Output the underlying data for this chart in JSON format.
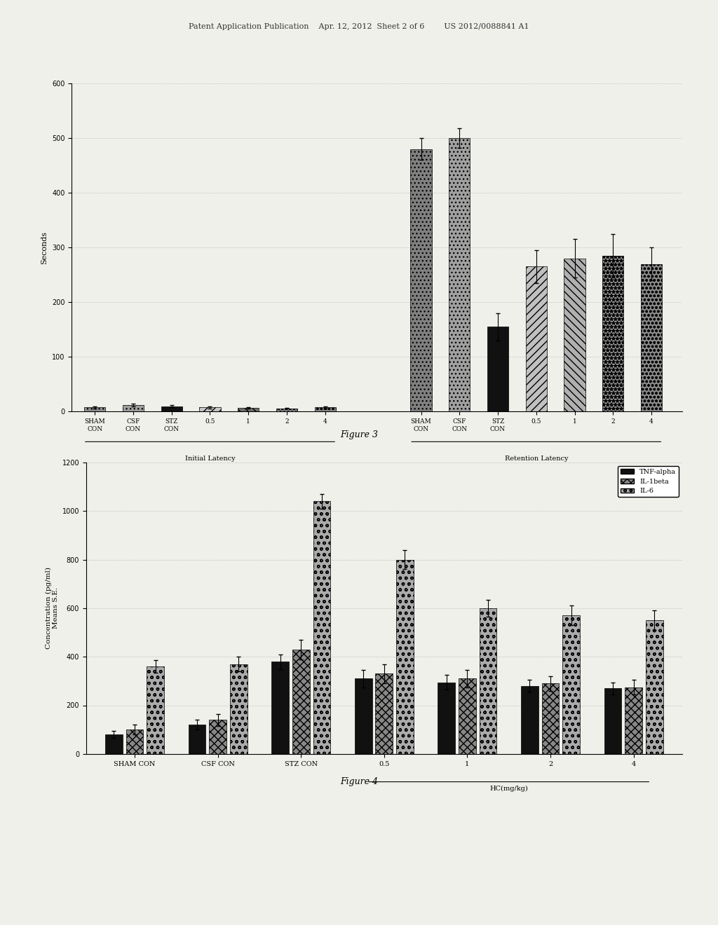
{
  "fig3": {
    "ylabel": "Seconds",
    "ylim": [
      0,
      600
    ],
    "yticks": [
      0,
      100,
      200,
      300,
      400,
      500,
      600
    ],
    "categories": [
      "SHAM\nCON",
      "CSF\nCON",
      "STZ\nCON",
      "0.5",
      "1",
      "2",
      "4"
    ],
    "initial_latency": {
      "values": [
        8,
        12,
        10,
        8,
        7,
        6,
        8
      ],
      "errors": [
        2,
        3,
        2,
        2,
        1,
        1,
        2
      ]
    },
    "retention_latency": {
      "values": [
        480,
        500,
        155,
        265,
        280,
        285,
        270
      ],
      "errors": [
        20,
        18,
        25,
        30,
        35,
        40,
        30
      ]
    },
    "figure_label": "Figure 3"
  },
  "fig4": {
    "ylabel": "Concentration (pg/ml)\nMeans S.E.",
    "ylim": [
      0,
      1200
    ],
    "yticks": [
      0,
      200,
      400,
      600,
      800,
      1000,
      1200
    ],
    "categories": [
      "SHAM CON",
      "CSF CON",
      "STZ CON",
      "0.5",
      "1",
      "2",
      "4"
    ],
    "tnf_alpha": {
      "values": [
        80,
        120,
        380,
        310,
        295,
        280,
        270
      ],
      "errors": [
        15,
        20,
        30,
        35,
        30,
        25,
        25
      ]
    },
    "il1beta": {
      "values": [
        100,
        140,
        430,
        330,
        310,
        290,
        275
      ],
      "errors": [
        20,
        25,
        40,
        40,
        35,
        30,
        30
      ]
    },
    "il6": {
      "values": [
        360,
        370,
        1040,
        800,
        600,
        570,
        550
      ],
      "errors": [
        25,
        30,
        30,
        40,
        35,
        40,
        40
      ]
    },
    "figure_label": "Figure 4"
  },
  "page_header": "Patent Application Publication    Apr. 12, 2012  Sheet 2 of 6        US 2012/0088841 A1",
  "background_color": "#f0f0eb"
}
